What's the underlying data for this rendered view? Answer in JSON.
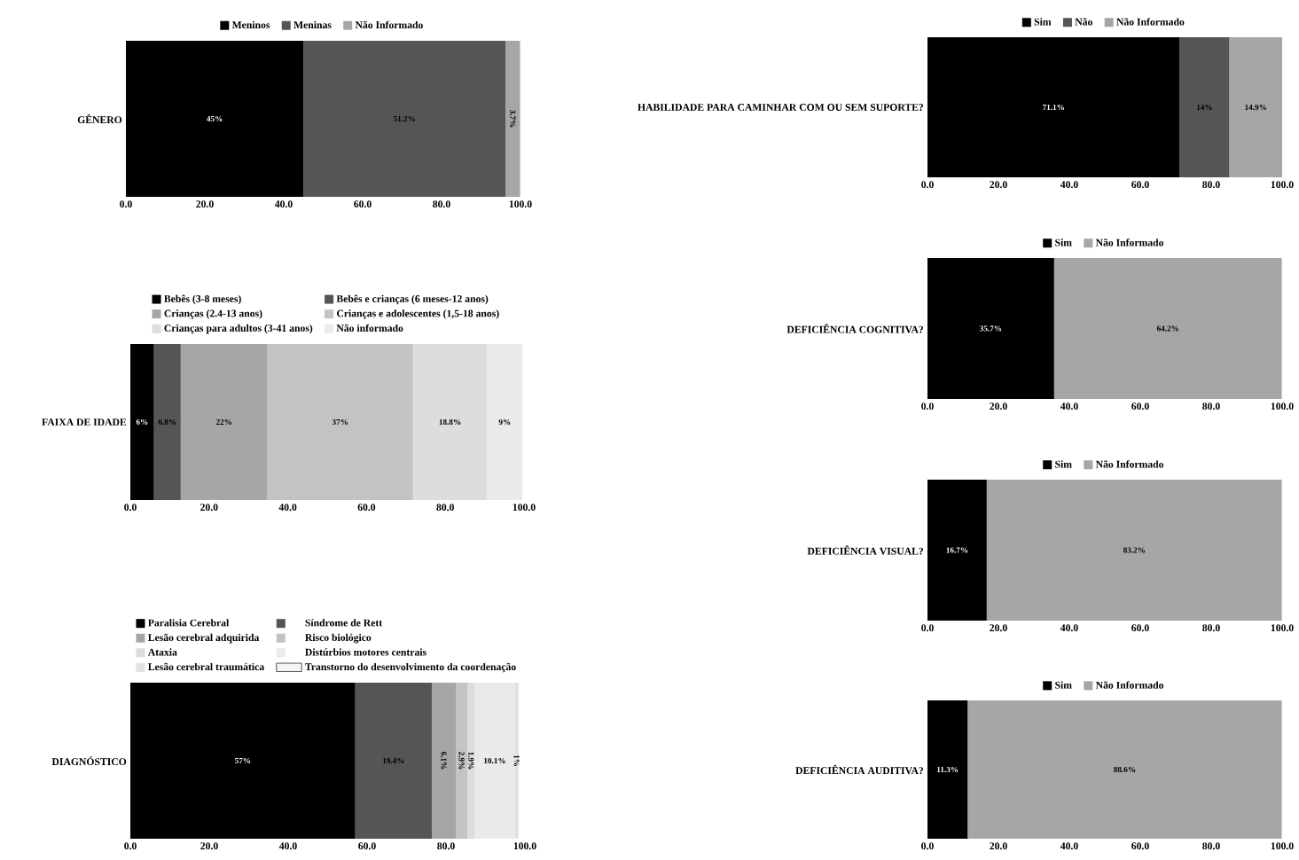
{
  "chart_data": [
    {
      "type": "bar",
      "orientation": "horizontal",
      "stacked": true,
      "categories": [
        "GÊNERO"
      ],
      "xlim": [
        0,
        100
      ],
      "xticks": [
        {
          "value": 0,
          "label": "0.0"
        },
        {
          "value": 20,
          "label": "20.0"
        },
        {
          "value": 40,
          "label": "40.0"
        },
        {
          "value": 60,
          "label": "60.0"
        },
        {
          "value": 80,
          "label": "80.0"
        },
        {
          "value": 100,
          "label": "100.0"
        }
      ],
      "legend": "top",
      "series": [
        {
          "name": "Meninos",
          "color": "#000000",
          "values": [
            45
          ],
          "value_labels": [
            "45%"
          ]
        },
        {
          "name": "Meninas",
          "color": "#555555",
          "values": [
            51.2
          ],
          "value_labels": [
            "51.2%"
          ]
        },
        {
          "name": "Não Informado",
          "color": "#a6a6a6",
          "values": [
            3.7
          ],
          "value_labels": [
            "3.7%"
          ]
        }
      ]
    },
    {
      "type": "bar",
      "orientation": "horizontal",
      "stacked": true,
      "categories": [
        "FAIXA DE IDADE"
      ],
      "xlim": [
        0,
        100
      ],
      "xticks": [
        {
          "value": 0,
          "label": "0.0"
        },
        {
          "value": 20,
          "label": "20.0"
        },
        {
          "value": 40,
          "label": "40.0"
        },
        {
          "value": 60,
          "label": "60.0"
        },
        {
          "value": 80,
          "label": "80.0"
        },
        {
          "value": 100,
          "label": "100.0"
        }
      ],
      "legend": "top",
      "series": [
        {
          "name": "Bebês (3-8 meses)",
          "color": "#000000",
          "values": [
            6
          ],
          "value_labels": [
            "6%"
          ]
        },
        {
          "name": "Bebês e crianças (6 meses-12 anos)",
          "color": "#555555",
          "values": [
            6.8
          ],
          "value_labels": [
            "6.8%"
          ]
        },
        {
          "name": "Crianças (2.4-13 anos)",
          "color": "#a6a6a6",
          "values": [
            22
          ],
          "value_labels": [
            "22%"
          ]
        },
        {
          "name": "Crianças e adolescentes (1,5-18 anos)",
          "color": "#c4c2c2",
          "values": [
            37
          ],
          "value_labels": [
            "37%"
          ]
        },
        {
          "name": "Crianças para adultos (3-41 anos)",
          "color": "#dedcdc",
          "values": [
            18.8
          ],
          "value_labels": [
            "18.8%"
          ]
        },
        {
          "name": "Não informado",
          "color": "#ebe9ec",
          "values": [
            9
          ],
          "value_labels": [
            "9%"
          ]
        }
      ]
    },
    {
      "type": "bar",
      "orientation": "horizontal",
      "stacked": true,
      "categories": [
        "DIAGNÓSTICO"
      ],
      "xlim": [
        0,
        100
      ],
      "xticks": [
        {
          "value": 0,
          "label": "0.0"
        },
        {
          "value": 20,
          "label": "20.0"
        },
        {
          "value": 40,
          "label": "40.0"
        },
        {
          "value": 60,
          "label": "60.0"
        },
        {
          "value": 80,
          "label": "80.0"
        },
        {
          "value": 100,
          "label": "100.0"
        }
      ],
      "legend": "top",
      "series": [
        {
          "name": "Paralisia Cerebral",
          "color": "#000000",
          "values": [
            57
          ],
          "value_labels": [
            "57%"
          ]
        },
        {
          "name": "Síndrome de Rett",
          "color": "#555555",
          "values": [
            19.4
          ],
          "value_labels": [
            "19.4%"
          ]
        },
        {
          "name": "Lesão cerebral adquirida",
          "color": "#a6a6a6",
          "values": [
            6.1
          ],
          "value_labels": [
            "6.1%"
          ]
        },
        {
          "name": "Risco biológico",
          "color": "#c4c2c2",
          "values": [
            2.9
          ],
          "value_labels": [
            "2.9%"
          ]
        },
        {
          "name": "Ataxia",
          "color": "#dedcdc",
          "values": [
            1.9
          ],
          "value_labels": [
            "1.9%"
          ]
        },
        {
          "name": "Distúrbios motores centrais",
          "color": "#ebe9ec",
          "values": [
            10.1
          ],
          "value_labels": [
            "10.1%"
          ]
        },
        {
          "name": "Lesão cerebral traumática",
          "color": "#e3e1e1",
          "values": [
            1
          ],
          "value_labels": [
            "1%"
          ]
        },
        {
          "name": "Transtorno do desenvolvimento da coordenação",
          "color": "#f4f4f4",
          "values": [
            null
          ]
        }
      ]
    },
    {
      "type": "bar",
      "orientation": "horizontal",
      "stacked": true,
      "categories": [
        "HABILIDADE PARA CAMINHAR COM OU SEM SUPORTE?"
      ],
      "xlim": [
        0,
        100
      ],
      "xticks": [
        {
          "value": 0,
          "label": "0.0"
        },
        {
          "value": 20,
          "label": "20.0"
        },
        {
          "value": 40,
          "label": "40.0"
        },
        {
          "value": 60,
          "label": "60.0"
        },
        {
          "value": 80,
          "label": "80.0"
        },
        {
          "value": 100,
          "label": "100.0"
        }
      ],
      "legend": "top",
      "series": [
        {
          "name": "Sim",
          "color": "#000000",
          "values": [
            71.1
          ],
          "value_labels": [
            "71.1%"
          ]
        },
        {
          "name": "Não",
          "color": "#555555",
          "values": [
            14
          ],
          "value_labels": [
            "14%"
          ]
        },
        {
          "name": "Não Informado",
          "color": "#a6a6a6",
          "values": [
            14.9
          ],
          "value_labels": [
            "14.9%"
          ]
        }
      ]
    },
    {
      "type": "bar",
      "orientation": "horizontal",
      "stacked": true,
      "categories": [
        "DEFICIÊNCIA COGNITIVA?"
      ],
      "xlim": [
        0,
        100
      ],
      "xticks": [
        {
          "value": 0,
          "label": "0.0"
        },
        {
          "value": 20,
          "label": "20.0"
        },
        {
          "value": 40,
          "label": "40.0"
        },
        {
          "value": 60,
          "label": "60.0"
        },
        {
          "value": 80,
          "label": "80.0"
        },
        {
          "value": 100,
          "label": "100.0"
        }
      ],
      "legend": "top",
      "series": [
        {
          "name": "Sim",
          "color": "#000000",
          "values": [
            35.7
          ],
          "value_labels": [
            "35.7%"
          ]
        },
        {
          "name": "Não Informado",
          "color": "#a6a6a6",
          "values": [
            64.2
          ],
          "value_labels": [
            "64.2%"
          ]
        }
      ]
    },
    {
      "type": "bar",
      "orientation": "horizontal",
      "stacked": true,
      "categories": [
        "DEFICIÊNCIA VISUAL?"
      ],
      "xlim": [
        0,
        100
      ],
      "xticks": [
        {
          "value": 0,
          "label": "0.0"
        },
        {
          "value": 20,
          "label": "20.0"
        },
        {
          "value": 40,
          "label": "40.0"
        },
        {
          "value": 60,
          "label": "60.0"
        },
        {
          "value": 80,
          "label": "80.0"
        },
        {
          "value": 100,
          "label": "100.0"
        }
      ],
      "legend": "top",
      "series": [
        {
          "name": "Sim",
          "color": "#000000",
          "values": [
            16.7
          ],
          "value_labels": [
            "16.7%"
          ]
        },
        {
          "name": "Não Informado",
          "color": "#a6a6a6",
          "values": [
            83.2
          ],
          "value_labels": [
            "83.2%"
          ]
        }
      ]
    },
    {
      "type": "bar",
      "orientation": "horizontal",
      "stacked": true,
      "categories": [
        "DEFICIÊNCIA AUDITIVA?"
      ],
      "xlim": [
        0,
        100
      ],
      "xticks": [
        {
          "value": 0,
          "label": "0.0"
        },
        {
          "value": 20,
          "label": "20.0"
        },
        {
          "value": 40,
          "label": "40.0"
        },
        {
          "value": 60,
          "label": "60.0"
        },
        {
          "value": 80,
          "label": "80.0"
        },
        {
          "value": 100,
          "label": "100.0"
        }
      ],
      "legend": "top",
      "series": [
        {
          "name": "Sim",
          "color": "#000000",
          "values": [
            11.3
          ],
          "value_labels": [
            "11.3%"
          ]
        },
        {
          "name": "Não Informado",
          "color": "#a6a6a6",
          "values": [
            88.6
          ],
          "value_labels": [
            "88.6%"
          ]
        }
      ]
    }
  ]
}
